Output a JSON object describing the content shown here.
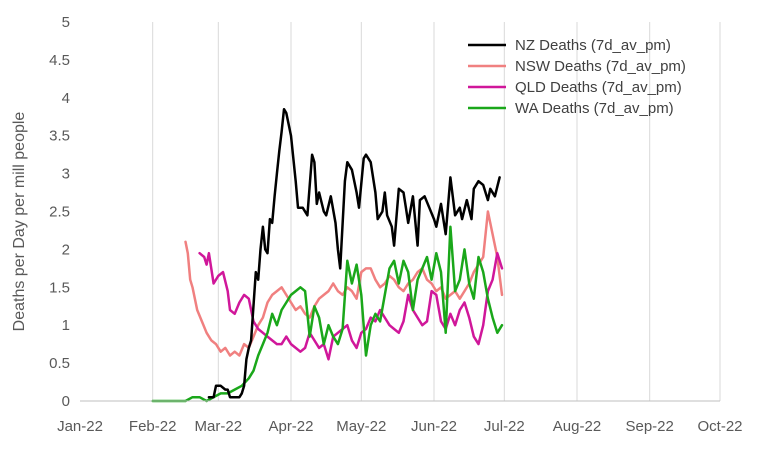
{
  "chart_data": {
    "type": "line",
    "title": "",
    "xlabel": "",
    "ylabel": "Deaths per Day per mill people",
    "ylim": [
      0,
      5
    ],
    "yticks": [
      "0",
      "0.5",
      "1",
      "1.5",
      "2",
      "2.5",
      "3",
      "3.5",
      "4",
      "4.5",
      "5"
    ],
    "xticks": [
      "Jan-22",
      "Feb-22",
      "Mar-22",
      "Apr-22",
      "May-22",
      "Jun-22",
      "Jul-22",
      "Aug-22",
      "Sep-22",
      "Oct-22"
    ],
    "xlim": [
      "2022-01-01",
      "2022-10-01"
    ],
    "grid": {
      "x": true,
      "y": false
    },
    "legend_position": "top-right",
    "series": [
      {
        "name": "NZ Deaths (7d_av_pm)",
        "color": "#000000",
        "x": [
          "2022-02-25",
          "2022-02-27",
          "2022-02-28",
          "2022-03-02",
          "2022-03-04",
          "2022-03-05",
          "2022-03-06",
          "2022-03-08",
          "2022-03-10",
          "2022-03-11",
          "2022-03-12",
          "2022-03-13",
          "2022-03-14",
          "2022-03-15",
          "2022-03-17",
          "2022-03-18",
          "2022-03-19",
          "2022-03-20",
          "2022-03-21",
          "2022-03-22",
          "2022-03-23",
          "2022-03-24",
          "2022-03-25",
          "2022-03-26",
          "2022-03-27",
          "2022-03-28",
          "2022-03-29",
          "2022-03-30",
          "2022-04-01",
          "2022-04-03",
          "2022-04-04",
          "2022-04-06",
          "2022-04-08",
          "2022-04-10",
          "2022-04-11",
          "2022-04-12",
          "2022-04-13",
          "2022-04-15",
          "2022-04-16",
          "2022-04-18",
          "2022-04-20",
          "2022-04-21",
          "2022-04-22",
          "2022-04-24",
          "2022-04-25",
          "2022-04-27",
          "2022-04-29",
          "2022-04-30",
          "2022-05-02",
          "2022-05-03",
          "2022-05-05",
          "2022-05-07",
          "2022-05-08",
          "2022-05-10",
          "2022-05-11",
          "2022-05-12",
          "2022-05-14",
          "2022-05-15",
          "2022-05-17",
          "2022-05-19",
          "2022-05-20",
          "2022-05-21",
          "2022-05-23",
          "2022-05-25",
          "2022-05-26",
          "2022-05-28",
          "2022-05-30",
          "2022-06-01",
          "2022-06-02",
          "2022-06-04",
          "2022-06-06",
          "2022-06-08",
          "2022-06-10",
          "2022-06-12",
          "2022-06-13",
          "2022-06-15",
          "2022-06-17",
          "2022-06-18",
          "2022-06-20",
          "2022-06-22",
          "2022-06-24",
          "2022-06-25",
          "2022-06-27",
          "2022-06-29"
        ],
        "y": [
          0.05,
          0.05,
          0.2,
          0.2,
          0.15,
          0.15,
          0.05,
          0.05,
          0.05,
          0.1,
          0.2,
          0.55,
          0.7,
          0.8,
          1.7,
          1.6,
          2.0,
          2.3,
          2.0,
          1.95,
          2.4,
          2.35,
          2.7,
          3.0,
          3.3,
          3.55,
          3.85,
          3.8,
          3.5,
          2.9,
          2.55,
          2.55,
          2.45,
          3.25,
          3.15,
          2.6,
          2.75,
          2.5,
          2.45,
          2.7,
          2.35,
          2.0,
          1.75,
          2.9,
          3.15,
          3.05,
          2.75,
          2.55,
          3.2,
          3.25,
          3.15,
          2.75,
          2.4,
          2.5,
          2.75,
          2.45,
          2.3,
          2.05,
          2.8,
          2.75,
          2.55,
          2.35,
          2.7,
          2.05,
          2.65,
          2.7,
          2.55,
          2.4,
          2.3,
          2.6,
          2.2,
          2.95,
          2.45,
          2.55,
          2.4,
          2.65,
          2.4,
          2.8,
          2.9,
          2.85,
          2.65,
          2.8,
          2.7,
          2.95
        ]
      },
      {
        "name": "NSW Deaths (7d_av_pm)",
        "color": "#f08080",
        "x": [
          "2022-02-15",
          "2022-02-16",
          "2022-02-17",
          "2022-02-18",
          "2022-02-20",
          "2022-02-22",
          "2022-02-24",
          "2022-02-26",
          "2022-02-28",
          "2022-03-02",
          "2022-03-04",
          "2022-03-06",
          "2022-03-08",
          "2022-03-10",
          "2022-03-12",
          "2022-03-14",
          "2022-03-16",
          "2022-03-18",
          "2022-03-20",
          "2022-03-22",
          "2022-03-24",
          "2022-03-26",
          "2022-03-28",
          "2022-03-30",
          "2022-04-01",
          "2022-04-03",
          "2022-04-05",
          "2022-04-07",
          "2022-04-09",
          "2022-04-11",
          "2022-04-13",
          "2022-04-15",
          "2022-04-17",
          "2022-04-19",
          "2022-04-21",
          "2022-04-23",
          "2022-04-25",
          "2022-04-27",
          "2022-04-29",
          "2022-05-01",
          "2022-05-03",
          "2022-05-05",
          "2022-05-07",
          "2022-05-09",
          "2022-05-11",
          "2022-05-13",
          "2022-05-15",
          "2022-05-17",
          "2022-05-19",
          "2022-05-21",
          "2022-05-23",
          "2022-05-25",
          "2022-05-27",
          "2022-05-29",
          "2022-05-31",
          "2022-06-02",
          "2022-06-04",
          "2022-06-06",
          "2022-06-08",
          "2022-06-10",
          "2022-06-12",
          "2022-06-14",
          "2022-06-16",
          "2022-06-18",
          "2022-06-20",
          "2022-06-22",
          "2022-06-24",
          "2022-06-26",
          "2022-06-28",
          "2022-06-30"
        ],
        "y": [
          2.1,
          1.95,
          1.6,
          1.5,
          1.2,
          1.05,
          0.9,
          0.8,
          0.75,
          0.65,
          0.7,
          0.6,
          0.65,
          0.6,
          0.75,
          0.7,
          0.85,
          1.0,
          1.1,
          1.3,
          1.4,
          1.45,
          1.5,
          1.4,
          1.3,
          1.2,
          1.25,
          1.15,
          1.1,
          1.25,
          1.35,
          1.4,
          1.45,
          1.55,
          1.45,
          1.4,
          1.5,
          1.45,
          1.35,
          1.7,
          1.75,
          1.75,
          1.6,
          1.5,
          1.55,
          1.65,
          1.6,
          1.5,
          1.45,
          1.55,
          1.6,
          1.7,
          1.75,
          1.6,
          1.55,
          1.45,
          1.5,
          1.35,
          1.4,
          1.45,
          1.35,
          1.45,
          1.55,
          1.7,
          1.8,
          1.9,
          2.5,
          2.2,
          1.9,
          1.4
        ]
      },
      {
        "name": "QLD Deaths (7d_av_pm)",
        "color": "#d0179a",
        "x": [
          "2022-02-21",
          "2022-02-23",
          "2022-02-24",
          "2022-02-25",
          "2022-02-27",
          "2022-03-01",
          "2022-03-03",
          "2022-03-05",
          "2022-03-06",
          "2022-03-08",
          "2022-03-10",
          "2022-03-12",
          "2022-03-14",
          "2022-03-16",
          "2022-03-18",
          "2022-03-20",
          "2022-03-22",
          "2022-03-24",
          "2022-03-26",
          "2022-03-28",
          "2022-03-30",
          "2022-04-01",
          "2022-04-03",
          "2022-04-05",
          "2022-04-07",
          "2022-04-09",
          "2022-04-11",
          "2022-04-13",
          "2022-04-15",
          "2022-04-17",
          "2022-04-19",
          "2022-04-21",
          "2022-04-23",
          "2022-04-25",
          "2022-04-27",
          "2022-04-29",
          "2022-05-01",
          "2022-05-03",
          "2022-05-05",
          "2022-05-07",
          "2022-05-09",
          "2022-05-11",
          "2022-05-13",
          "2022-05-15",
          "2022-05-17",
          "2022-05-19",
          "2022-05-21",
          "2022-05-23",
          "2022-05-25",
          "2022-05-27",
          "2022-05-29",
          "2022-05-31",
          "2022-06-02",
          "2022-06-04",
          "2022-06-06",
          "2022-06-08",
          "2022-06-10",
          "2022-06-12",
          "2022-06-14",
          "2022-06-16",
          "2022-06-18",
          "2022-06-20",
          "2022-06-22",
          "2022-06-24",
          "2022-06-26",
          "2022-06-28",
          "2022-06-30"
        ],
        "y": [
          1.95,
          1.9,
          1.8,
          1.95,
          1.55,
          1.65,
          1.7,
          1.45,
          1.2,
          1.15,
          1.3,
          1.4,
          1.35,
          1.05,
          0.95,
          0.9,
          0.85,
          0.8,
          0.75,
          0.75,
          0.85,
          0.75,
          0.7,
          0.65,
          0.7,
          0.9,
          0.8,
          0.7,
          0.75,
          0.55,
          0.85,
          0.9,
          0.95,
          1.0,
          0.8,
          0.7,
          0.9,
          0.95,
          1.1,
          1.05,
          1.2,
          1.1,
          1.0,
          0.95,
          0.9,
          1.05,
          1.4,
          1.2,
          1.1,
          1.0,
          1.05,
          1.45,
          1.4,
          1.05,
          0.95,
          1.15,
          1.0,
          1.2,
          1.3,
          1.1,
          0.85,
          0.75,
          1.0,
          1.45,
          1.6,
          1.95,
          1.75
        ]
      },
      {
        "name": "WA Deaths (7d_av_pm)",
        "color": "#1aa71a",
        "x": [
          "2022-02-01",
          "2022-02-05",
          "2022-02-10",
          "2022-02-13",
          "2022-02-15",
          "2022-02-18",
          "2022-02-21",
          "2022-02-24",
          "2022-02-27",
          "2022-03-02",
          "2022-03-05",
          "2022-03-08",
          "2022-03-11",
          "2022-03-14",
          "2022-03-16",
          "2022-03-18",
          "2022-03-20",
          "2022-03-22",
          "2022-03-24",
          "2022-03-26",
          "2022-03-28",
          "2022-03-30",
          "2022-04-01",
          "2022-04-03",
          "2022-04-05",
          "2022-04-07",
          "2022-04-09",
          "2022-04-11",
          "2022-04-13",
          "2022-04-15",
          "2022-04-17",
          "2022-04-19",
          "2022-04-21",
          "2022-04-23",
          "2022-04-25",
          "2022-04-27",
          "2022-04-29",
          "2022-05-01",
          "2022-05-03",
          "2022-05-05",
          "2022-05-07",
          "2022-05-09",
          "2022-05-11",
          "2022-05-13",
          "2022-05-15",
          "2022-05-17",
          "2022-05-19",
          "2022-05-21",
          "2022-05-23",
          "2022-05-25",
          "2022-05-27",
          "2022-05-29",
          "2022-05-31",
          "2022-06-02",
          "2022-06-04",
          "2022-06-06",
          "2022-06-08",
          "2022-06-10",
          "2022-06-12",
          "2022-06-14",
          "2022-06-16",
          "2022-06-18",
          "2022-06-20",
          "2022-06-22",
          "2022-06-24",
          "2022-06-26",
          "2022-06-28",
          "2022-06-30"
        ],
        "y": [
          0.0,
          0.0,
          0.0,
          0.0,
          0.0,
          0.05,
          0.05,
          0.0,
          0.05,
          0.1,
          0.1,
          0.15,
          0.2,
          0.3,
          0.4,
          0.6,
          0.75,
          0.9,
          1.15,
          1.0,
          1.2,
          1.3,
          1.4,
          1.45,
          1.5,
          1.45,
          0.85,
          1.25,
          1.1,
          0.75,
          1.0,
          0.85,
          0.75,
          0.95,
          1.85,
          1.55,
          1.8,
          1.4,
          0.6,
          1.0,
          1.15,
          1.05,
          1.4,
          1.75,
          1.85,
          1.55,
          1.85,
          1.7,
          1.2,
          1.6,
          1.75,
          1.9,
          1.6,
          1.95,
          1.7,
          0.9,
          2.3,
          1.45,
          1.6,
          2.0,
          1.55,
          1.35,
          1.9,
          1.7,
          1.35,
          1.1,
          0.9,
          1.0
        ]
      }
    ]
  }
}
